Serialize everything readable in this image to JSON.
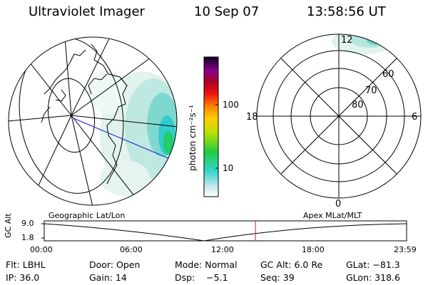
{
  "header": {
    "instrument": "Ultraviolet Imager",
    "date": "10 Sep 07",
    "time": "13:58:56 UT"
  },
  "colorbar": {
    "label": "photon cm⁻²s⁻¹",
    "ticks": [
      "100",
      "10"
    ]
  },
  "polar_plot": {
    "mlt_labels": [
      "12",
      "18",
      "6",
      "0"
    ],
    "lat_labels": [
      "60",
      "70",
      "80"
    ]
  },
  "timeline": {
    "left_caption": "Geographic Lat/Lon",
    "right_caption": "Apex MLat/MLT",
    "y_axis_label": "GC Alt",
    "y_ticks": [
      "9.0",
      "1.8"
    ],
    "x_ticks": [
      "00:00",
      "06:00",
      "12:00",
      "18:00",
      "23:59"
    ],
    "current_time_fraction": 0.583
  },
  "info": {
    "filter": "Flt: LBHL",
    "door": "Door: Open",
    "mode": "Mode: Normal",
    "gc_alt": "GC Alt: 6.0 Re",
    "glat": "GLat: −81.3",
    "ip": "IP: 36.0",
    "gain": "Gain: 14",
    "dsp": "Dsp:    −5.1",
    "seq": "Seq: 39",
    "glon": "GLon: 318.6"
  },
  "colors": {
    "emission_light": "#cfeee6",
    "emission_mid": "#8fdcd4",
    "emission_strong": "#33cccc",
    "emission_peak": "#22cc66",
    "track_line": "#2233cc",
    "time_marker": "#cc2222"
  }
}
